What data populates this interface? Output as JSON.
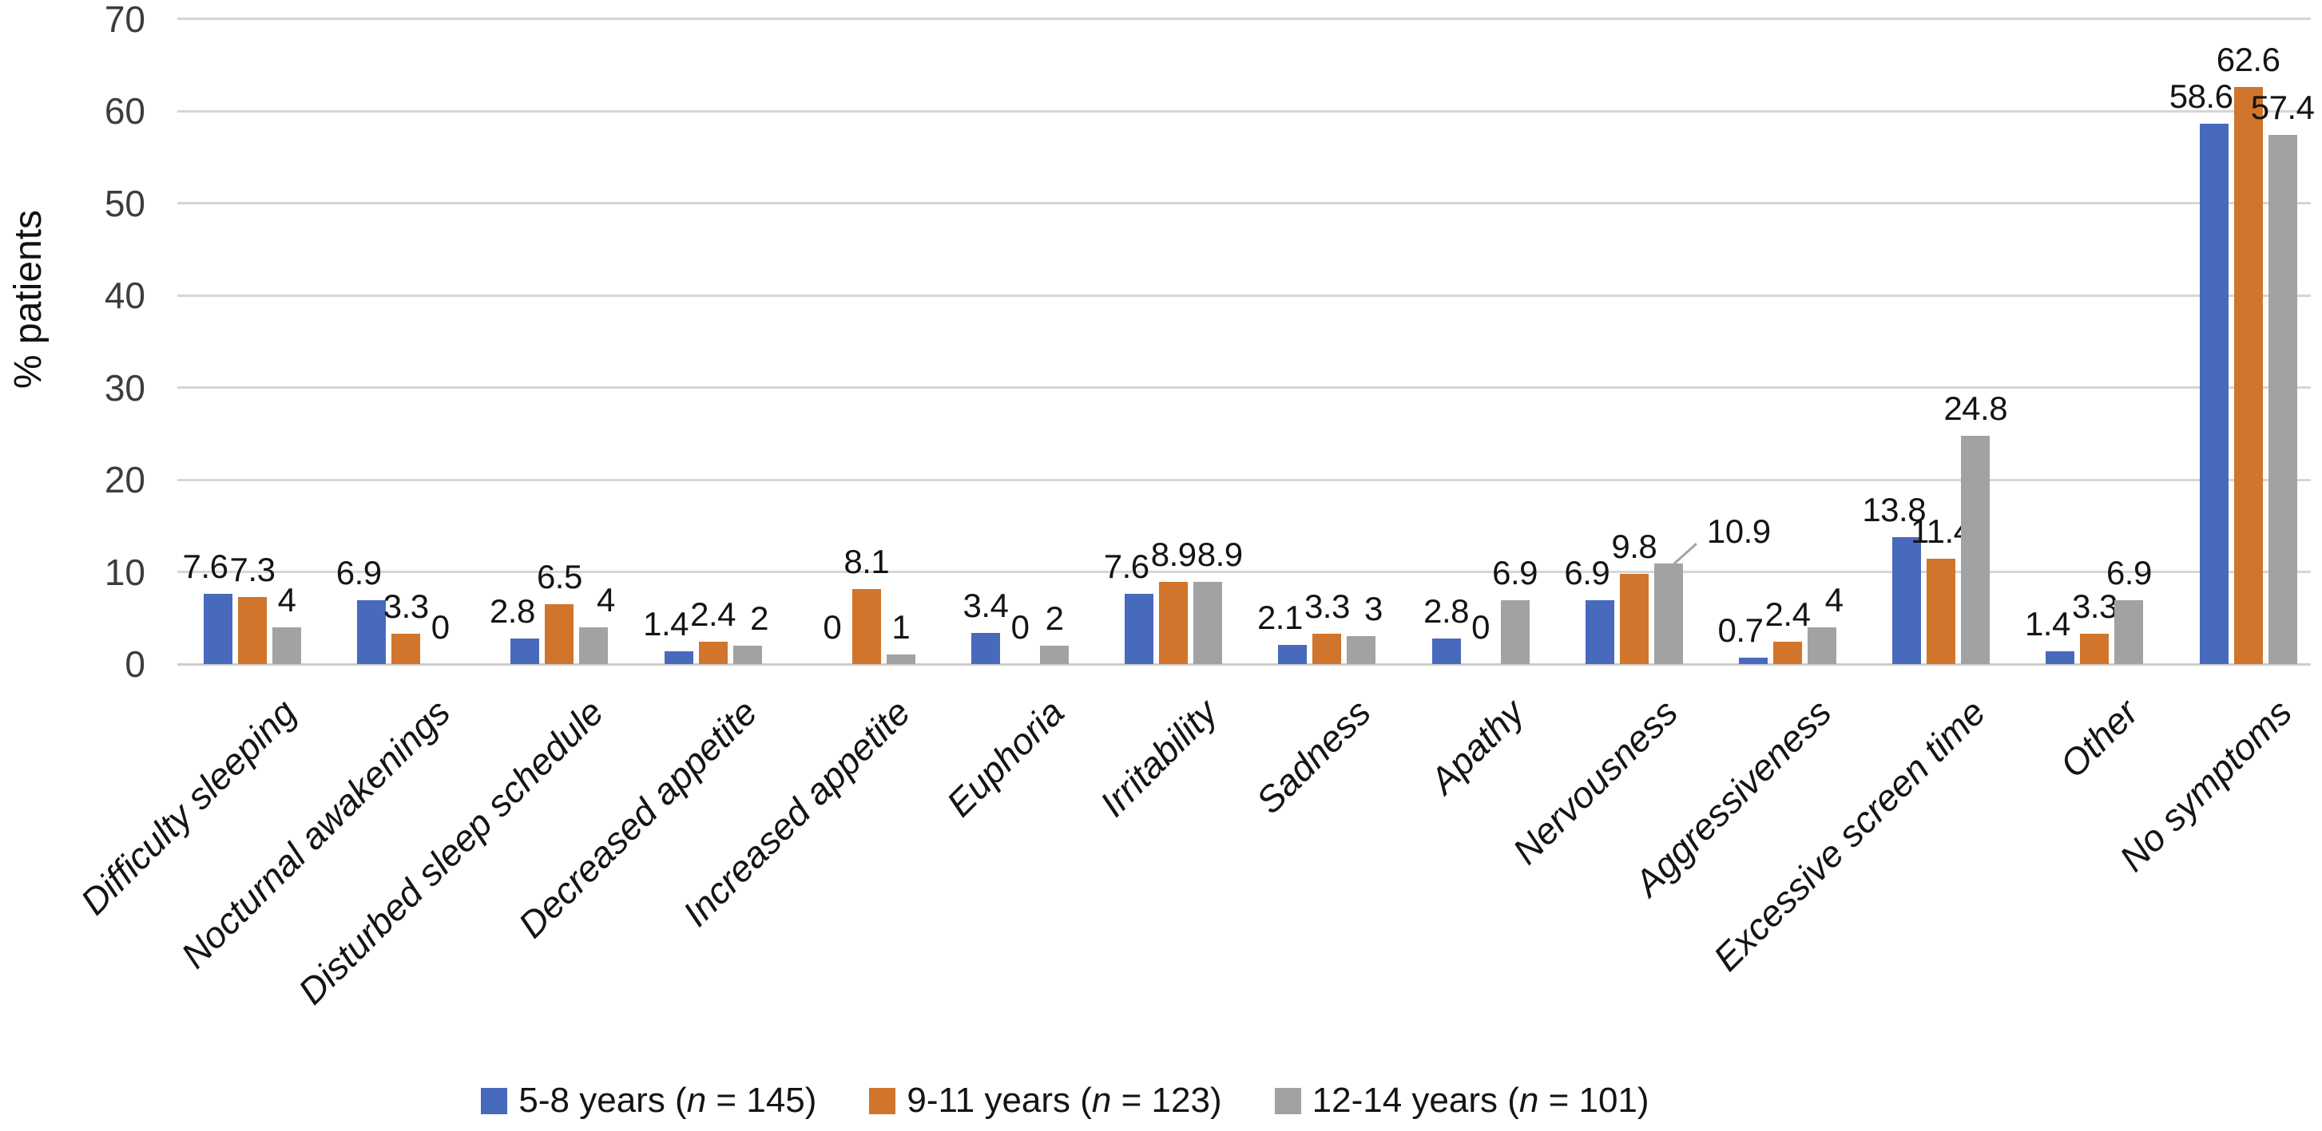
{
  "chart_data": {
    "type": "bar",
    "title": "",
    "xlabel": "",
    "ylabel": "% patients",
    "ylim": [
      0,
      70
    ],
    "yticks": [
      0,
      10,
      20,
      30,
      40,
      50,
      60,
      70
    ],
    "grid": "horizontal",
    "bar_value_labels_shown": true,
    "legend_position": "bottom",
    "categories": [
      "Difficulty sleeping",
      "Nocturnal awakenings",
      "Disturbed sleep schedule",
      "Decreased appetite",
      "Increased appetite",
      "Euphoria",
      "Irritability",
      "Sadness",
      "Apathy",
      "Nervousness",
      "Aggressiveness",
      "Excessive screen time",
      "Other",
      "No symptoms"
    ],
    "series": [
      {
        "name": "5-8 years (n = 145)",
        "legend": {
          "group": "5-8 years",
          "n": "145"
        },
        "color": "#486ABD",
        "values": [
          7.6,
          6.9,
          2.8,
          1.4,
          0,
          3.4,
          7.6,
          2.1,
          2.8,
          6.9,
          0.7,
          13.8,
          1.4,
          58.6
        ]
      },
      {
        "name": "9-11 years (n = 123)",
        "legend": {
          "group": "9-11 years",
          "n": "123"
        },
        "color": "#D0752B",
        "values": [
          7.3,
          3.3,
          6.5,
          2.4,
          8.1,
          0,
          8.9,
          3.3,
          0,
          9.8,
          2.4,
          11.4,
          3.3,
          62.6
        ]
      },
      {
        "name": "12-14 years (n = 101)",
        "legend": {
          "group": "12-14 years",
          "n": "101"
        },
        "color": "#A2A2A2",
        "values": [
          4,
          0,
          4,
          2,
          1,
          2,
          8.9,
          3,
          6.9,
          10.9,
          4,
          24.8,
          6.9,
          57.4
        ]
      }
    ],
    "annotations": [
      {
        "series": "12-14 years (n = 101)",
        "category": "Nervousness",
        "label": "10.9",
        "leader_line": true
      }
    ]
  }
}
